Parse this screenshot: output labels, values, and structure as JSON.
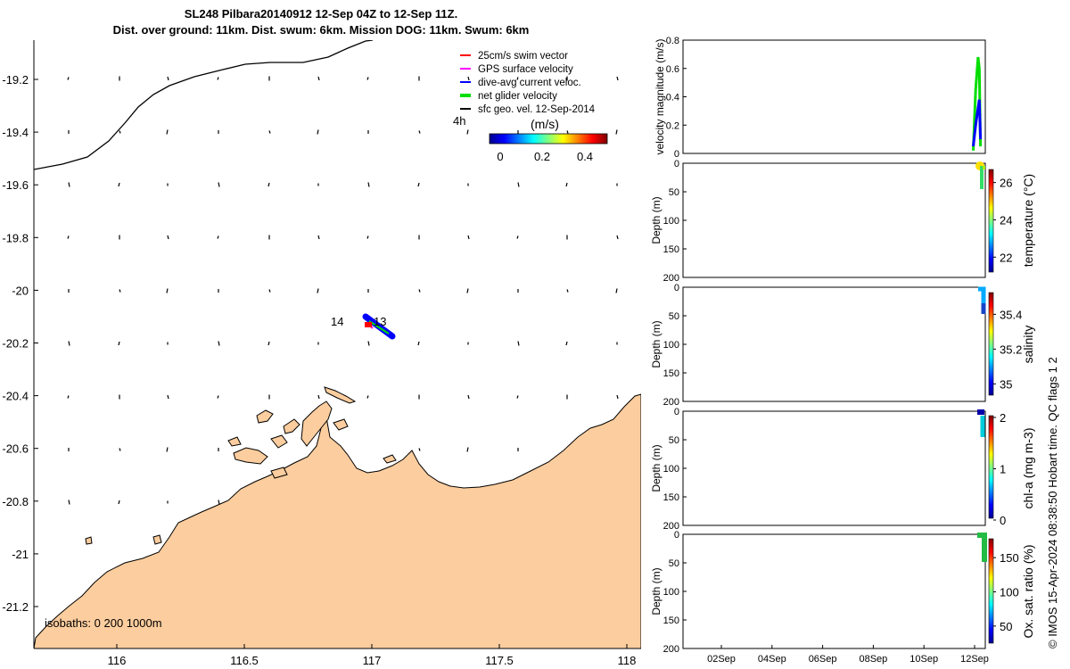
{
  "title": {
    "line1": "SL248 Pilbara20140912 12-Sep 04Z to 12-Sep 11Z.",
    "line2": "Dist. over ground: 11km. Dist. swum: 6km. Mission DOG: 11km. Swum: 6km"
  },
  "colors": {
    "land": "#fccd9e",
    "swim": "#ff0000",
    "gps": "#ff00ff",
    "dive_avg": "#0000ff",
    "net": "#00dd00",
    "sfc_geo": "#000000"
  },
  "map": {
    "x_ticks": [
      "116",
      "116.5",
      "117",
      "117.5",
      "118"
    ],
    "y_ticks": [
      "-19.2",
      "-19.4",
      "-19.6",
      "-19.8",
      "-20",
      "-20.2",
      "-20.4",
      "-20.6",
      "-20.8",
      "-21",
      "-21.2"
    ],
    "legend": [
      {
        "label": "25cm/s swim vector",
        "color_key": "swim"
      },
      {
        "label": "GPS surface velocity",
        "color_key": "gps"
      },
      {
        "label": "dive-avg current veloc.",
        "color_key": "dive_avg"
      },
      {
        "label": "net glider velocity",
        "color_key": "net"
      },
      {
        "label": "sfc geo. vel. 12-Sep-2014",
        "color_key": "sfc_geo"
      }
    ],
    "time_label": "4h",
    "colorbar": {
      "title": "(m/s)",
      "ticks": [
        "0",
        "0.2",
        "0.4"
      ],
      "range": [
        -0.05,
        0.5
      ]
    },
    "track_labels": [
      "14",
      "13"
    ],
    "isobaths_label": "isobaths: 0   200  1000m"
  },
  "chart_data": [
    {
      "type": "line",
      "ylabel": "velocity magnitude (m/s)",
      "y_ticks": [
        "0",
        "0.2",
        "0.4",
        "0.6",
        "0.8"
      ],
      "ylim": [
        0,
        0.8
      ],
      "xlim": [
        0,
        12.6
      ],
      "series": [
        {
          "color_key": "net",
          "x": [
            12.1,
            12.2,
            12.3,
            12.35,
            12.4
          ],
          "y": [
            0.02,
            0.45,
            0.68,
            0.6,
            0.05
          ]
        },
        {
          "color_key": "dive_avg",
          "x": [
            12.1,
            12.2,
            12.3,
            12.35,
            12.4
          ],
          "y": [
            0.05,
            0.2,
            0.32,
            0.38,
            0.1
          ]
        }
      ]
    },
    {
      "type": "scatter",
      "ylabel": "Depth (m)",
      "colorbar_label": "temperature (°C)",
      "y_ticks": [
        "0",
        "50",
        "100",
        "150",
        "200"
      ],
      "ylim": [
        0,
        200
      ],
      "colorbar_ticks": [
        "22",
        "24",
        "26"
      ],
      "colorbar_range": [
        21.2,
        26.7
      ]
    },
    {
      "type": "scatter",
      "ylabel": "Depth (m)",
      "colorbar_label": "salinity",
      "y_ticks": [
        "0",
        "50",
        "100",
        "150",
        "200"
      ],
      "ylim": [
        0,
        200
      ],
      "colorbar_ticks": [
        "35",
        "35.2",
        "35.4"
      ],
      "colorbar_range": [
        34.93,
        35.52
      ]
    },
    {
      "type": "scatter",
      "ylabel": "Depth (m)",
      "colorbar_label": "chl-a (mg m-3)",
      "y_ticks": [
        "0",
        "50",
        "100",
        "150",
        "200"
      ],
      "ylim": [
        0,
        200
      ],
      "colorbar_ticks": [
        "0",
        "1",
        "2"
      ],
      "colorbar_range": [
        0,
        2
      ]
    },
    {
      "type": "scatter",
      "ylabel": "Depth (m)",
      "colorbar_label": "Ox. sat. ratio (%)",
      "y_ticks": [
        "0",
        "50",
        "100",
        "150",
        "200"
      ],
      "ylim": [
        0,
        200
      ],
      "colorbar_ticks": [
        "50",
        "100",
        "150"
      ],
      "colorbar_range": [
        25,
        175
      ],
      "x_ticks": [
        "02Sep",
        "04Sep",
        "06Sep",
        "08Sep",
        "10Sep",
        "12Sep"
      ]
    }
  ],
  "side_label": "© IMOS 15-Apr-2024 08:38:50 Hobart time. QC flags 1  2"
}
